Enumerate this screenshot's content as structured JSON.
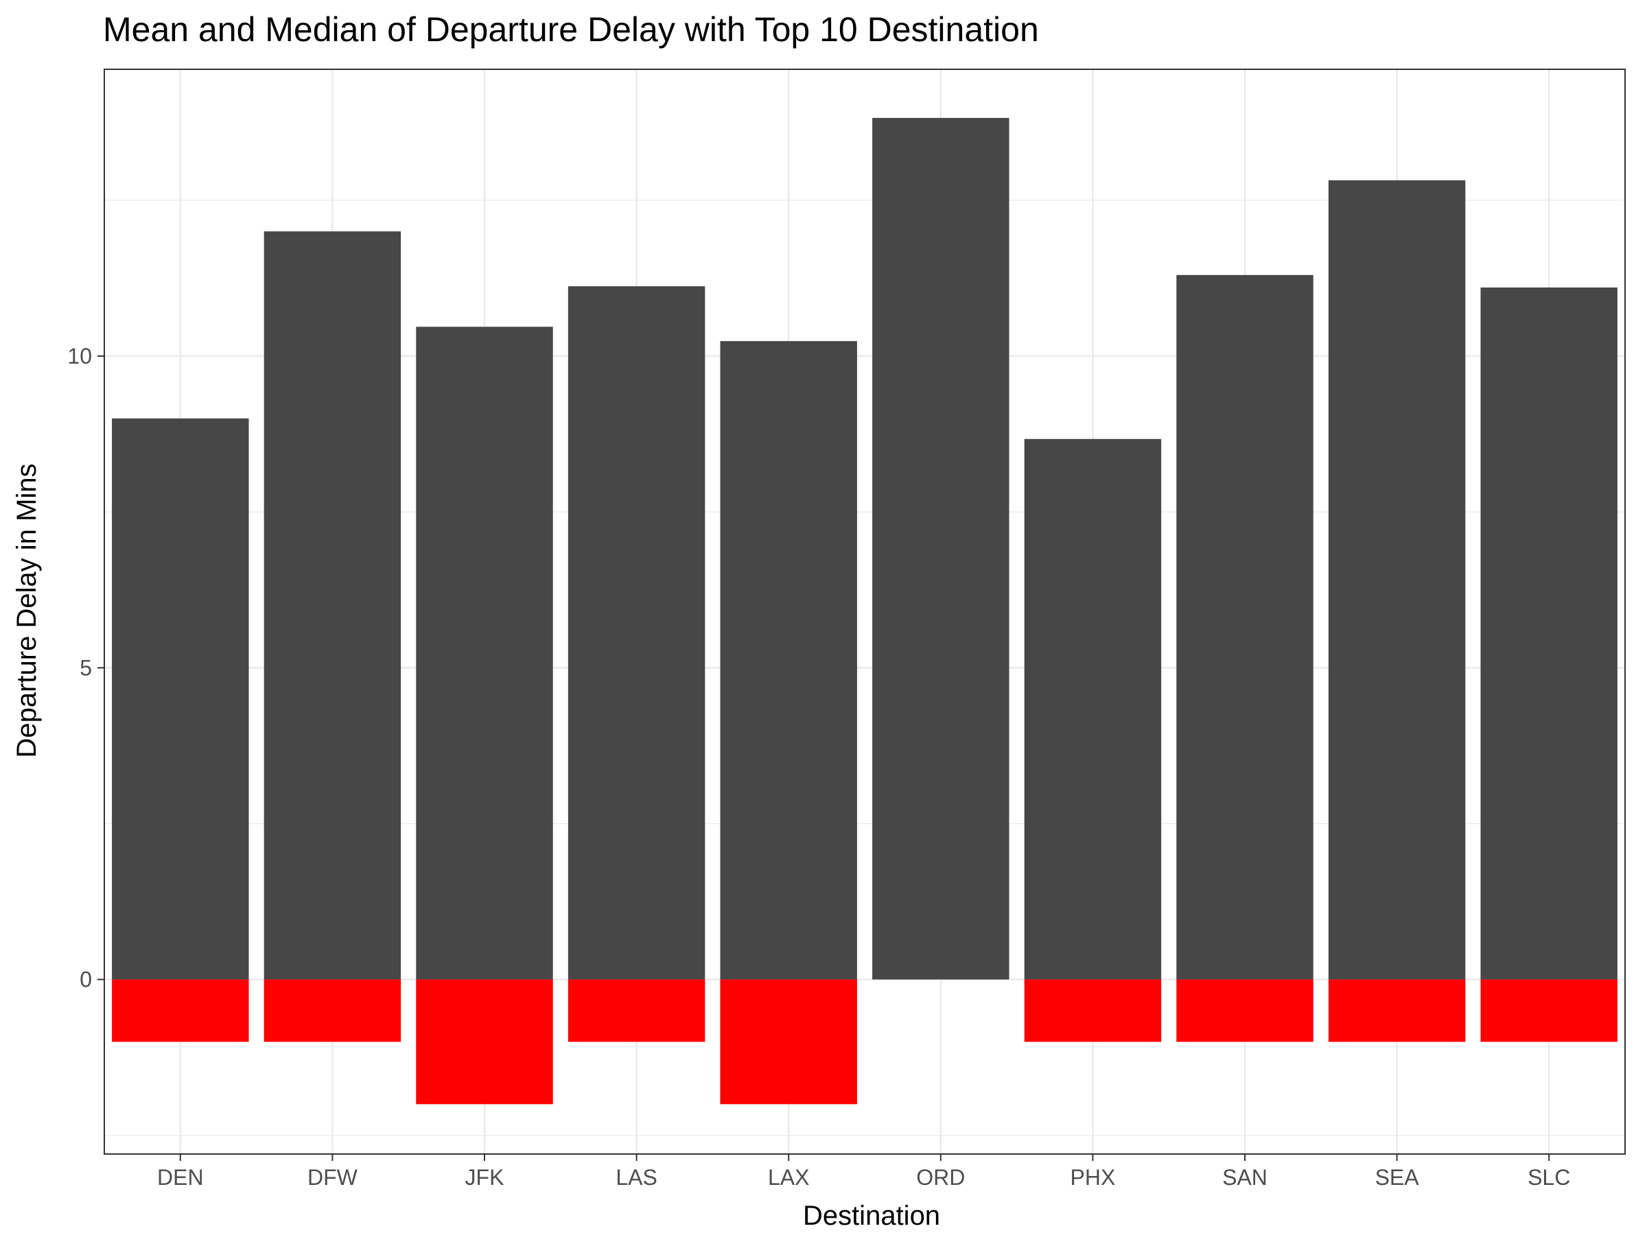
{
  "chart_data": {
    "type": "bar",
    "title": "Mean and Median of Departure Delay with Top 10 Destination",
    "xlabel": "Destination",
    "ylabel": "Departure Delay in Mins",
    "categories": [
      "DEN",
      "DFW",
      "JFK",
      "LAS",
      "LAX",
      "ORD",
      "PHX",
      "SAN",
      "SEA",
      "SLC"
    ],
    "series": [
      {
        "values": [
          9.0,
          12.0,
          10.47,
          11.12,
          10.24,
          13.82,
          8.67,
          11.3,
          12.82,
          11.1
        ],
        "color": "#474747"
      },
      {
        "values": [
          -1,
          -1,
          -2,
          -1,
          -2,
          0,
          -1,
          -1,
          -1,
          -1
        ],
        "color": "#ff0000"
      }
    ],
    "ylim": [
      -2.8,
      14.6
    ],
    "yticks": [
      0,
      5,
      10
    ],
    "grid": true,
    "legend": "none",
    "colors": {
      "panel_border": "#333333",
      "grid": "#ebebeb",
      "tick_label": "#4d4d4d"
    }
  }
}
